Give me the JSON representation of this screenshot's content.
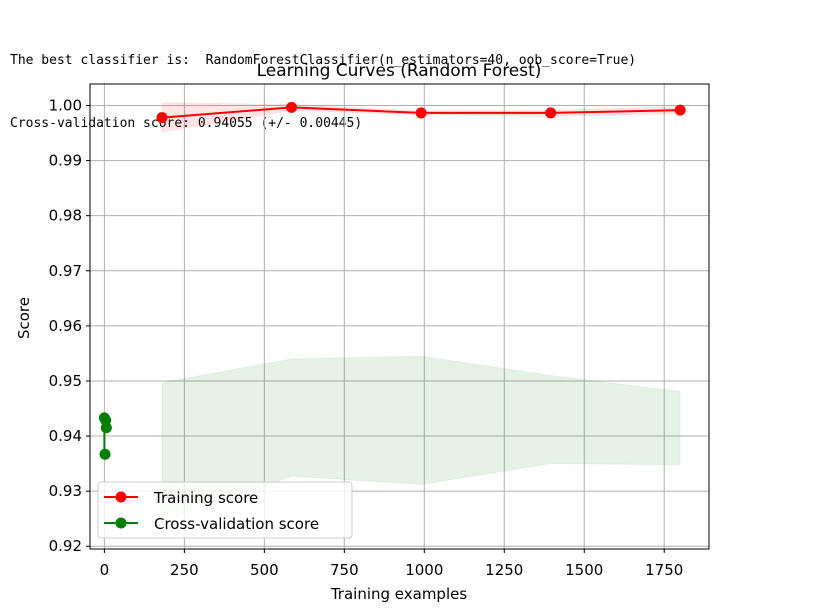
{
  "console": {
    "line1": "The best classifier is:  RandomForestClassifier(n_estimators=40, oob_score=True)",
    "line2": "Cross-validation score: 0.94055 (+/- 0.00445)"
  },
  "chart_data": {
    "type": "line",
    "title": "Learning Curves (Random Forest)",
    "xlabel": "Training examples",
    "ylabel": "Score",
    "xlim": [
      -45,
      1890
    ],
    "ylim": [
      0.9195,
      1.0039
    ],
    "xticks": [
      0,
      250,
      500,
      750,
      1000,
      1250,
      1500,
      1750
    ],
    "yticks": [
      0.92,
      0.93,
      0.94,
      0.95,
      0.96,
      0.97,
      0.98,
      0.99,
      1.0
    ],
    "xtick_labels": [
      "0",
      "250",
      "500",
      "750",
      "1000",
      "1250",
      "1500",
      "1750"
    ],
    "ytick_labels": [
      "0.92",
      "0.93",
      "0.94",
      "0.95",
      "0.96",
      "0.97",
      "0.98",
      "0.99",
      "1.00"
    ],
    "grid": true,
    "legend_position": "lower-left",
    "series": [
      {
        "name": "Training score",
        "color": "#ff0000",
        "band_color": "#ff0000",
        "x": [
          180,
          585,
          990,
          1395,
          1800
        ],
        "y": [
          0.9978,
          0.99965,
          0.99865,
          0.99865,
          0.99915
        ],
        "band_lower": [
          0.9952,
          0.9991,
          0.9983,
          0.998,
          0.9985
        ],
        "band_upper": [
          1.0005,
          1.0002,
          0.999,
          0.9991,
          0.9998
        ]
      },
      {
        "name": "Cross-validation score",
        "color": "#008000",
        "band_color": "#008000",
        "points": [
          {
            "x": 0,
            "y": 0.9433
          },
          {
            "x": 4,
            "y": 0.9429
          },
          {
            "x": 6,
            "y": 0.9415
          },
          {
            "x": 2,
            "y": 0.9367
          }
        ],
        "segment": {
          "x": 0,
          "y1": 0.9433,
          "y2": 0.9367
        },
        "band_x": [
          180,
          585,
          990,
          1395,
          1800
        ],
        "band_lower": [
          0.9245,
          0.9327,
          0.9312,
          0.935,
          0.9348
        ],
        "band_upper": [
          0.9497,
          0.954,
          0.9545,
          0.951,
          0.9481
        ]
      }
    ]
  }
}
